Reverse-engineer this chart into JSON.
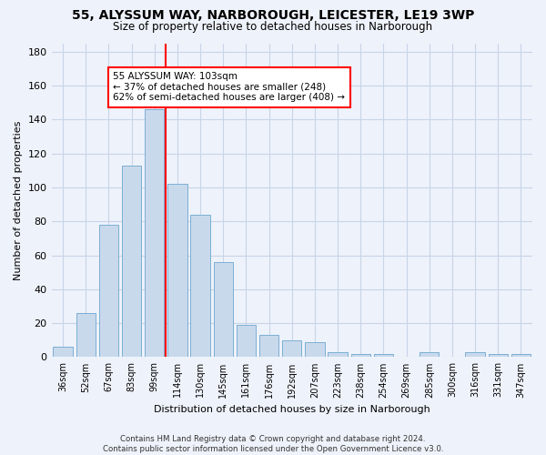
{
  "title": "55, ALYSSUM WAY, NARBOROUGH, LEICESTER, LE19 3WP",
  "subtitle": "Size of property relative to detached houses in Narborough",
  "xlabel": "Distribution of detached houses by size in Narborough",
  "ylabel": "Number of detached properties",
  "categories": [
    "36sqm",
    "52sqm",
    "67sqm",
    "83sqm",
    "99sqm",
    "114sqm",
    "130sqm",
    "145sqm",
    "161sqm",
    "176sqm",
    "192sqm",
    "207sqm",
    "223sqm",
    "238sqm",
    "254sqm",
    "269sqm",
    "285sqm",
    "300sqm",
    "316sqm",
    "331sqm",
    "347sqm"
  ],
  "values": [
    6,
    26,
    78,
    113,
    146,
    102,
    84,
    56,
    19,
    13,
    10,
    9,
    3,
    2,
    2,
    0,
    3,
    0,
    3,
    2,
    2
  ],
  "bar_color": "#c9d9ec",
  "bar_edge_color": "#7aafd4",
  "grid_color": "#c8d4e8",
  "background_color": "#eef2fa",
  "vline_x": 4.5,
  "vline_color": "red",
  "annotation_line1": "55 ALYSSUM WAY: 103sqm",
  "annotation_line2": "← 37% of detached houses are smaller (248)",
  "annotation_line3": "62% of semi-detached houses are larger (408) →",
  "annotation_box_color": "white",
  "annotation_box_edge_color": "red",
  "ylim": [
    0,
    185
  ],
  "yticks": [
    0,
    20,
    40,
    60,
    80,
    100,
    120,
    140,
    160,
    180
  ],
  "footer": "Contains HM Land Registry data © Crown copyright and database right 2024.\nContains public sector information licensed under the Open Government Licence v3.0."
}
